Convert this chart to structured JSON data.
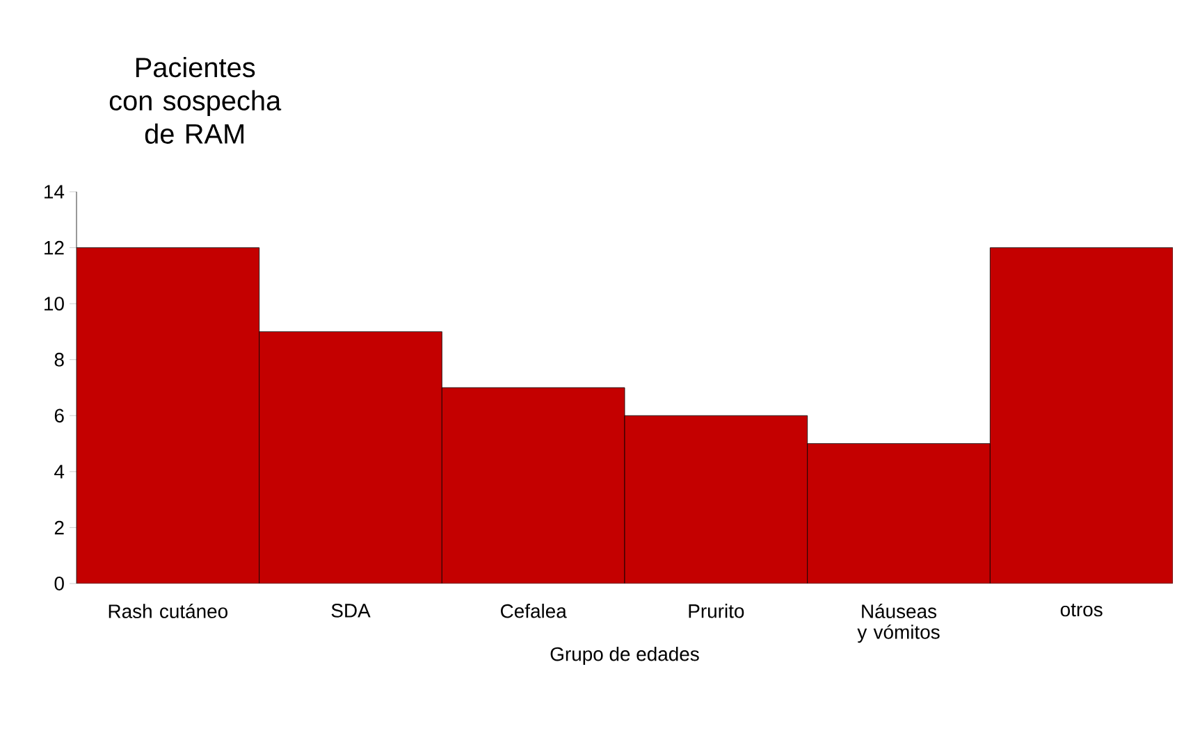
{
  "chart_data": {
    "type": "bar",
    "ylabel": "Pacientes con sospecha de RAM",
    "xlabel": "Grupo de edades",
    "categories": [
      "Rash cutáneo",
      "SDA",
      "Cefalea",
      "Prurito",
      "Náuseas y vómitos",
      "otros"
    ],
    "values": [
      12,
      9,
      7,
      6,
      5,
      12
    ],
    "color": "#c40000",
    "ylim": [
      0,
      14
    ],
    "yticks": [
      0,
      2,
      4,
      6,
      8,
      10,
      12,
      14
    ],
    "grid": false
  }
}
